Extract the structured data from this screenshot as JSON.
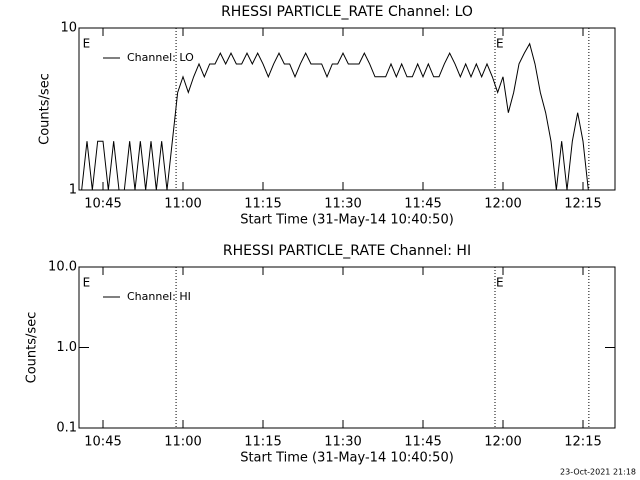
{
  "chart_data": [
    {
      "type": "line",
      "title": "RHESSI PARTICLE_RATE Channel: LO",
      "x_label": "Start Time (31-May-14 10:40:50)",
      "y_label": "Counts/sec",
      "log_y": true,
      "xlim": [
        640.5,
        741
      ],
      "ylim": [
        1,
        10
      ],
      "yticks": [
        1,
        10
      ],
      "xticks": [
        {
          "value": 645,
          "label": "10:45"
        },
        {
          "value": 660,
          "label": "11:00"
        },
        {
          "value": 675,
          "label": "11:15"
        },
        {
          "value": 690,
          "label": "11:30"
        },
        {
          "value": 705,
          "label": "11:45"
        },
        {
          "value": 720,
          "label": "12:00"
        },
        {
          "value": 735,
          "label": "12:15"
        }
      ],
      "markers": [
        {
          "label": "E",
          "x": 641
        },
        {
          "label": "E",
          "x": 718.5
        }
      ],
      "dotted_lines": [
        658.7,
        718.5,
        736.1
      ],
      "x": [
        641,
        642,
        643,
        644,
        645,
        646,
        647,
        648,
        649,
        650,
        651,
        652,
        653,
        654,
        655,
        656,
        657,
        658,
        659,
        660,
        661,
        662,
        663,
        664,
        665,
        666,
        667,
        668,
        669,
        670,
        671,
        672,
        673,
        674,
        675,
        676,
        677,
        678,
        679,
        680,
        681,
        682,
        683,
        684,
        685,
        686,
        687,
        688,
        689,
        690,
        691,
        692,
        693,
        694,
        695,
        696,
        697,
        698,
        699,
        700,
        701,
        702,
        703,
        704,
        705,
        706,
        707,
        708,
        709,
        710,
        711,
        712,
        713,
        714,
        715,
        716,
        717,
        718,
        719,
        720,
        721,
        722,
        723,
        724,
        725,
        726,
        727,
        728,
        729,
        730,
        731,
        732,
        733,
        734,
        735,
        736
      ],
      "series": [
        {
          "name": "Channel: LO",
          "color": "#000000",
          "values": [
            1,
            2,
            1,
            2,
            2,
            1,
            2,
            1,
            1,
            2,
            1,
            2,
            1,
            2,
            1,
            2,
            1,
            2,
            4,
            5,
            4,
            5,
            6,
            5,
            6,
            6,
            7,
            6,
            7,
            6,
            6,
            7,
            6,
            7,
            6,
            5,
            6,
            7,
            6,
            6,
            5,
            6,
            7,
            6,
            6,
            6,
            5,
            6,
            6,
            7,
            6,
            6,
            6,
            7,
            6,
            5,
            5,
            5,
            6,
            5,
            6,
            5,
            5,
            6,
            5,
            6,
            5,
            5,
            6,
            7,
            6,
            5,
            6,
            5,
            6,
            5,
            6,
            5,
            4,
            5,
            3,
            4,
            6,
            7,
            8,
            6,
            4,
            3,
            2,
            1,
            2,
            1,
            2,
            3,
            2,
            1
          ]
        }
      ]
    },
    {
      "type": "line",
      "title": "RHESSI PARTICLE_RATE Channel: HI",
      "x_label": "Start Time (31-May-14 10:40:50)",
      "y_label": "Counts/sec",
      "log_y": true,
      "xlim": [
        640.5,
        741
      ],
      "ylim": [
        0.1,
        10
      ],
      "yticks": [
        0.1,
        {
          "value": 1,
          "label": "1.0"
        },
        {
          "value": 10,
          "label": "10.0"
        }
      ],
      "xticks": [
        {
          "value": 645,
          "label": "10:45"
        },
        {
          "value": 660,
          "label": "11:00"
        },
        {
          "value": 675,
          "label": "11:15"
        },
        {
          "value": 690,
          "label": "11:30"
        },
        {
          "value": 705,
          "label": "11:45"
        },
        {
          "value": 720,
          "label": "12:00"
        },
        {
          "value": 735,
          "label": "12:15"
        }
      ],
      "markers": [
        {
          "label": "E",
          "x": 641
        },
        {
          "label": "E",
          "x": 718.5
        }
      ],
      "dotted_lines": [
        658.7,
        718.5,
        736.1
      ],
      "x": [],
      "series": [
        {
          "name": "Channel: HI",
          "color": "#000000",
          "values": []
        }
      ]
    }
  ],
  "footer": "23-Oct-2021 21:18"
}
